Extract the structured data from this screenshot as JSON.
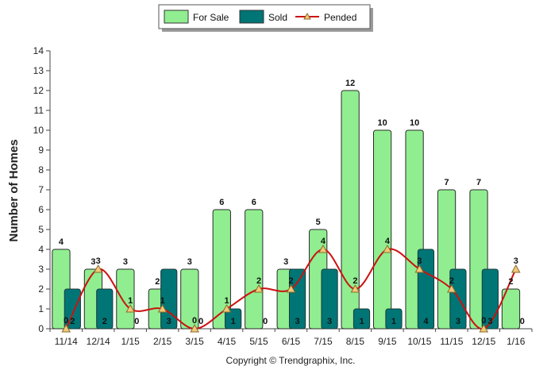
{
  "chart_data": {
    "type": "bar",
    "categories": [
      "11/14",
      "12/14",
      "1/15",
      "2/15",
      "3/15",
      "4/15",
      "5/15",
      "6/15",
      "7/15",
      "8/15",
      "9/15",
      "10/15",
      "11/15",
      "12/15",
      "1/16"
    ],
    "series": [
      {
        "name": "For Sale",
        "type": "bar",
        "color": "#90EE90",
        "values": [
          4,
          3,
          3,
          2,
          3,
          6,
          6,
          3,
          5,
          12,
          10,
          10,
          7,
          7,
          2
        ]
      },
      {
        "name": "Sold",
        "type": "bar",
        "color": "#007575",
        "values": [
          2,
          2,
          0,
          3,
          0,
          1,
          0,
          3,
          3,
          1,
          1,
          4,
          3,
          3,
          0
        ]
      },
      {
        "name": "Pended",
        "type": "line",
        "color": "#CC1111",
        "values": [
          0,
          3,
          1,
          1,
          0,
          1,
          2,
          2,
          4,
          2,
          4,
          3,
          2,
          0,
          3
        ]
      }
    ],
    "ylabel": "Number of Homes",
    "xlabel": "",
    "ylim": [
      0,
      14
    ],
    "yticks": [
      0,
      1,
      2,
      3,
      4,
      5,
      6,
      7,
      8,
      9,
      10,
      11,
      12,
      13,
      14
    ],
    "grid": false,
    "legend": "top-center"
  },
  "copyright": "Copyright © Trendgraphix, Inc."
}
